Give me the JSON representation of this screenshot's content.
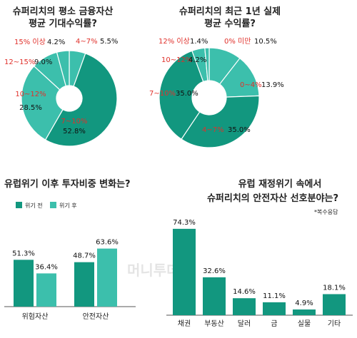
{
  "colors": {
    "dark": "#12977f",
    "light": "#3cbfac",
    "red": "#e0312b",
    "text": "#111111"
  },
  "watermark": "머니투데이",
  "chart_data": [
    {
      "type": "pie",
      "title_lines": [
        "슈퍼리치의 평소 금융자산",
        "평균 기대수익률?"
      ],
      "slices": [
        {
          "label": "4~7%",
          "value": 5.5,
          "value_text": "5.5%",
          "shade": "light"
        },
        {
          "label": "7~10%",
          "value": 52.8,
          "value_text": "52.8%",
          "shade": "dark"
        },
        {
          "label": "10~12%",
          "value": 28.5,
          "value_text": "28.5%",
          "shade": "light"
        },
        {
          "label": "12~15%",
          "value": 9.0,
          "value_text": "9.0%",
          "shade": "light"
        },
        {
          "label": "15% 이상",
          "value": 4.2,
          "value_text": "4.2%",
          "shade": "light"
        }
      ]
    },
    {
      "type": "pie",
      "title_lines": [
        "슈퍼리치의 최근 1년 실제",
        "평균 수익률?"
      ],
      "slices": [
        {
          "label": "0% 미만",
          "value": 10.5,
          "value_text": "10.5%",
          "shade": "light"
        },
        {
          "label": "0~4%",
          "value": 13.9,
          "value_text": "13.9%",
          "shade": "light"
        },
        {
          "label": "4~7%",
          "value": 35.0,
          "value_text": "35.0%",
          "shade": "dark"
        },
        {
          "label": "7~10%",
          "value": 35.0,
          "value_text": "35.0%",
          "shade": "dark"
        },
        {
          "label": "10~12%",
          "value": 4.2,
          "value_text": "4.2%",
          "shade": "light"
        },
        {
          "label": "12% 이상",
          "value": 1.4,
          "value_text": "1.4%",
          "shade": "light"
        }
      ]
    },
    {
      "type": "bar",
      "title": "유럽위기 이후 투자비중 변화는?",
      "categories": [
        "위험자산",
        "안전자산"
      ],
      "series": [
        {
          "name": "위기 전",
          "values": [
            51.3,
            48.7
          ],
          "value_texts": [
            "51.3%",
            "48.7%"
          ],
          "shade": "dark"
        },
        {
          "name": "위기 후",
          "values": [
            36.4,
            63.6
          ],
          "value_texts": [
            "36.4%",
            "63.6%"
          ],
          "shade": "light"
        }
      ],
      "legend": "top-left",
      "grid": false
    },
    {
      "type": "bar",
      "title_lines": [
        "유럽 재정위기 속에서",
        "슈퍼리치의 안전자산 선호분야는?"
      ],
      "note": "*복수응답",
      "categories": [
        "채권",
        "부동산",
        "달러",
        "금",
        "실물",
        "기타"
      ],
      "values": [
        74.3,
        32.6,
        14.6,
        11.1,
        4.9,
        18.1
      ],
      "value_texts": [
        "74.3%",
        "32.6%",
        "14.6%",
        "11.1%",
        "4.9%",
        "18.1%"
      ],
      "grid": false
    }
  ]
}
